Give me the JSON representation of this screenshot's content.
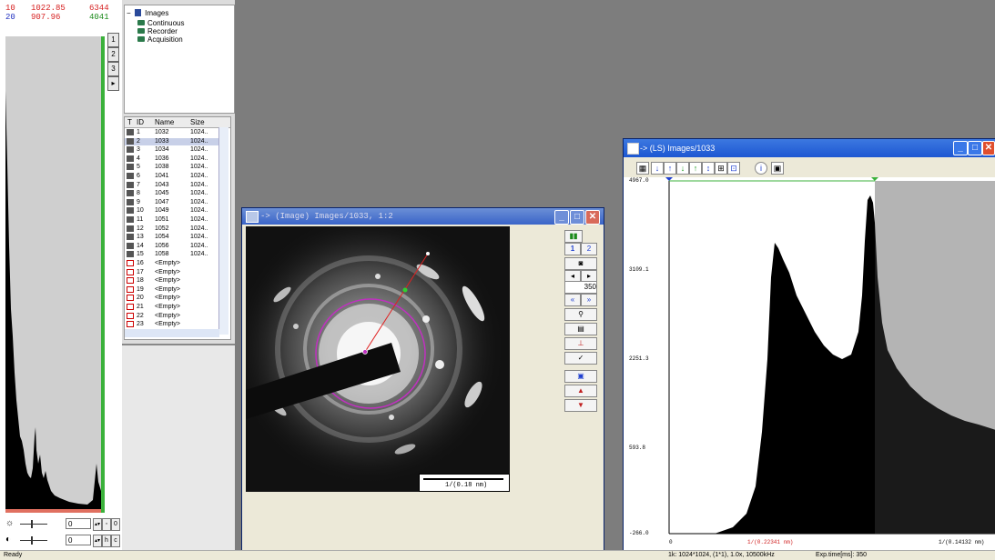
{
  "hist_stats": [
    {
      "index": "10",
      "mean": "1022.85",
      "count": "6344",
      "color": "#d62020"
    },
    {
      "index": "20",
      "mean": "907.96",
      "count": "4041",
      "color": "#2030c0"
    }
  ],
  "left_tabs": [
    "1",
    "2",
    "3",
    "▸"
  ],
  "slider_controls": [
    {
      "icon": "☼",
      "value": "0",
      "btn1": "◦",
      "btn2": "0"
    },
    {
      "icon": "◐",
      "value": "0",
      "btn1": "h",
      "btn2": "c"
    }
  ],
  "tree": {
    "root": "Images",
    "expander": "−",
    "children": [
      "Continuous",
      "Recorder",
      "Acquisition"
    ]
  },
  "list": {
    "headers": [
      "T",
      "ID",
      "Name",
      "Size"
    ],
    "rows": [
      {
        "id": "1",
        "name": "1032",
        "size": "1024..",
        "empty": false
      },
      {
        "id": "2",
        "name": "1033",
        "size": "1024..",
        "empty": false,
        "selected": true
      },
      {
        "id": "3",
        "name": "1034",
        "size": "1024..",
        "empty": false
      },
      {
        "id": "4",
        "name": "1036",
        "size": "1024..",
        "empty": false
      },
      {
        "id": "5",
        "name": "1038",
        "size": "1024..",
        "empty": false
      },
      {
        "id": "6",
        "name": "1041",
        "size": "1024..",
        "empty": false
      },
      {
        "id": "7",
        "name": "1043",
        "size": "1024..",
        "empty": false
      },
      {
        "id": "8",
        "name": "1045",
        "size": "1024..",
        "empty": false
      },
      {
        "id": "9",
        "name": "1047",
        "size": "1024..",
        "empty": false
      },
      {
        "id": "10",
        "name": "1049",
        "size": "1024..",
        "empty": false
      },
      {
        "id": "11",
        "name": "1051",
        "size": "1024..",
        "empty": false
      },
      {
        "id": "12",
        "name": "1052",
        "size": "1024..",
        "empty": false
      },
      {
        "id": "13",
        "name": "1054",
        "size": "1024..",
        "empty": false
      },
      {
        "id": "14",
        "name": "1056",
        "size": "1024..",
        "empty": false
      },
      {
        "id": "15",
        "name": "1058",
        "size": "1024..",
        "empty": false
      },
      {
        "id": "16",
        "name": "<Empty>",
        "size": "",
        "empty": true
      },
      {
        "id": "17",
        "name": "<Empty>",
        "size": "",
        "empty": true
      },
      {
        "id": "18",
        "name": "<Empty>",
        "size": "",
        "empty": true
      },
      {
        "id": "19",
        "name": "<Empty>",
        "size": "",
        "empty": true
      },
      {
        "id": "20",
        "name": "<Empty>",
        "size": "",
        "empty": true
      },
      {
        "id": "21",
        "name": "<Empty>",
        "size": "",
        "empty": true
      },
      {
        "id": "22",
        "name": "<Empty>",
        "size": "",
        "empty": true
      },
      {
        "id": "23",
        "name": "<Empty>",
        "size": "",
        "empty": true
      }
    ]
  },
  "image_window": {
    "title": "-> (Image) Images/1033, 1:2",
    "scale_bar": "1/(0.18 nm)",
    "zoom_buttons": [
      "1",
      "2"
    ],
    "side_value": "350"
  },
  "ls_window": {
    "title": "-> (LS)  Images/1033",
    "y_labels": [
      "4967.0",
      "3109.1",
      "2251.3",
      "593.8",
      "-266.0"
    ],
    "x_labels": [
      "0",
      "1/(0.22341 nm)",
      "1/(0.14132 nm)"
    ]
  },
  "status": {
    "left": "Ready",
    "right1": "1k: 1024*1024, (1*1), 1.0x, 10500kHz",
    "right2": "Exp.time[ms]: 350"
  },
  "colors": {
    "title_active": "#1d57d2",
    "title_inactive": "#6b8fd6",
    "close": "#e04f2e"
  }
}
